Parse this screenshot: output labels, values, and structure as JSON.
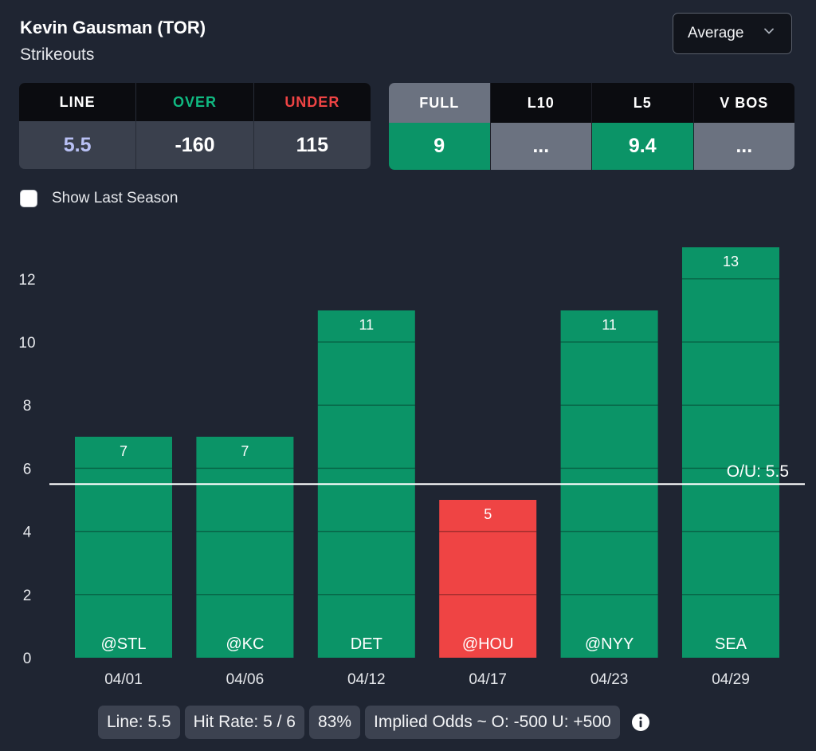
{
  "header": {
    "player": "Kevin Gausman (TOR)",
    "stat": "Strikeouts",
    "select_value": "Average"
  },
  "odds": {
    "line_label": "LINE",
    "over_label": "OVER",
    "under_label": "UNDER",
    "line_value": "5.5",
    "over_value": "-160",
    "under_value": "115",
    "colors": {
      "line": "#b9c1f5",
      "over": "#10b981",
      "under": "#ef4444"
    }
  },
  "ranges": {
    "items": [
      {
        "label": "FULL",
        "value": "9",
        "hit": true,
        "active": true
      },
      {
        "label": "L10",
        "value": "...",
        "hit": false,
        "active": false
      },
      {
        "label": "L5",
        "value": "9.4",
        "hit": true,
        "active": false
      },
      {
        "label": "V BOS",
        "value": "...",
        "hit": false,
        "active": false
      }
    ]
  },
  "toggle": {
    "label": "Show Last Season",
    "checked": false
  },
  "chart_data": {
    "type": "bar",
    "categories": [
      "04/01",
      "04/06",
      "04/12",
      "04/17",
      "04/23",
      "04/29"
    ],
    "opponents": [
      "@STL",
      "@KC",
      "DET",
      "@HOU",
      "@NYY",
      "SEA"
    ],
    "values": [
      7,
      7,
      11,
      5,
      11,
      13
    ],
    "ylim": [
      0,
      14
    ],
    "yticks": [
      0,
      2,
      4,
      6,
      8,
      10,
      12
    ],
    "line": 5.5,
    "line_label": "O/U: 5.5",
    "colors": {
      "over": "#0b9467",
      "under": "#ef4444",
      "line": "#ffffff"
    }
  },
  "footer": {
    "line": "Line: 5.5",
    "hit_rate": "Hit Rate: 5 / 6",
    "pct": "83%",
    "implied": "Implied Odds ~ O: -500 U: +500"
  }
}
